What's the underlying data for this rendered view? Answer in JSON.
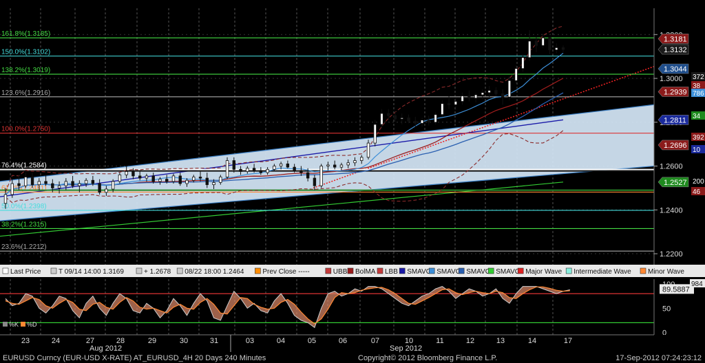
{
  "chart_data": {
    "type": "candlestick",
    "instrument": "EURUSD",
    "interval": "240 Minutes",
    "y_range": [
      1.215,
      1.332
    ],
    "y_ticks": [
      "1.3200",
      "1.3000",
      "1.2800",
      "1.2600",
      "1.2400",
      "1.2200"
    ],
    "x_labels": [
      "23",
      "24",
      "27",
      "28",
      "29",
      "30",
      "31",
      "03",
      "04",
      "05",
      "06",
      "07",
      "10",
      "11",
      "12",
      "13",
      "14",
      "17"
    ],
    "month_labels": [
      "Aug 2012",
      "Sep 2012"
    ],
    "fib_levels": [
      {
        "label": "161.8%(1.3185)",
        "value": 1.3185,
        "color": "#44dd44"
      },
      {
        "label": "150.0%(1.3102)",
        "value": 1.3102,
        "color": "#44dddd"
      },
      {
        "label": "138.2%(1.3019)",
        "value": 1.3019,
        "color": "#44dd44"
      },
      {
        "label": "123.6%(1.2916)",
        "value": 1.2916,
        "color": "#aaaaaa"
      },
      {
        "label": "100.0%(1.2750)",
        "value": 1.275,
        "color": "#dd3333"
      },
      {
        "label": "76.4%(1.2584)",
        "value": 1.2584,
        "color": "#ffffff"
      },
      {
        "label": "61.8%(1.2481)",
        "value": 1.2481,
        "color": "#ff8833"
      },
      {
        "label": "50.0%(1.2398)",
        "value": 1.2398,
        "color": "#44dddd"
      },
      {
        "label": "38.2%(1.2315)",
        "value": 1.2315,
        "color": "#44dd44"
      },
      {
        "label": "23.6%(1.2212)",
        "value": 1.2212,
        "color": "#aaaaaa"
      }
    ],
    "price_tags": [
      {
        "text": "1.3181",
        "value": 1.3181,
        "bg": "#8b1a1a"
      },
      {
        "text": "1.3132",
        "value": 1.3132,
        "bg": "#1a1a1a"
      },
      {
        "text": "1.3044",
        "value": 1.3044,
        "bg": "#1f4e8c"
      },
      {
        "text": "1.2939",
        "value": 1.2939,
        "bg": "#8b1a1a"
      },
      {
        "text": "1.2811",
        "value": 1.2811,
        "bg": "#1a2a9c"
      },
      {
        "text": "1.2696",
        "value": 1.2696,
        "bg": "#8b1a1a"
      },
      {
        "text": "1.2527",
        "value": 1.2527,
        "bg": "#1e8a1e"
      }
    ],
    "candles": [
      {
        "o": 1.243,
        "h": 1.25,
        "l": 1.2405,
        "c": 1.247
      },
      {
        "o": 1.247,
        "h": 1.254,
        "l": 1.2455,
        "c": 1.252
      },
      {
        "o": 1.252,
        "h": 1.256,
        "l": 1.249,
        "c": 1.251
      },
      {
        "o": 1.251,
        "h": 1.257,
        "l": 1.25,
        "c": 1.255
      },
      {
        "o": 1.255,
        "h": 1.257,
        "l": 1.25,
        "c": 1.2515
      },
      {
        "o": 1.2515,
        "h": 1.2545,
        "l": 1.249,
        "c": 1.253
      },
      {
        "o": 1.253,
        "h": 1.256,
        "l": 1.251,
        "c": 1.252
      },
      {
        "o": 1.252,
        "h": 1.254,
        "l": 1.248,
        "c": 1.25
      },
      {
        "o": 1.25,
        "h": 1.253,
        "l": 1.2475,
        "c": 1.251
      },
      {
        "o": 1.251,
        "h": 1.2545,
        "l": 1.249,
        "c": 1.253
      },
      {
        "o": 1.253,
        "h": 1.2555,
        "l": 1.25,
        "c": 1.251
      },
      {
        "o": 1.251,
        "h": 1.2535,
        "l": 1.248,
        "c": 1.252
      },
      {
        "o": 1.252,
        "h": 1.2545,
        "l": 1.2505,
        "c": 1.2535
      },
      {
        "o": 1.2535,
        "h": 1.2555,
        "l": 1.251,
        "c": 1.252
      },
      {
        "o": 1.252,
        "h": 1.254,
        "l": 1.247,
        "c": 1.248
      },
      {
        "o": 1.248,
        "h": 1.251,
        "l": 1.2464,
        "c": 1.2495
      },
      {
        "o": 1.2495,
        "h": 1.254,
        "l": 1.248,
        "c": 1.253
      },
      {
        "o": 1.253,
        "h": 1.257,
        "l": 1.252,
        "c": 1.256
      },
      {
        "o": 1.256,
        "h": 1.26,
        "l": 1.2545,
        "c": 1.2575
      },
      {
        "o": 1.2575,
        "h": 1.259,
        "l": 1.254,
        "c": 1.2555
      },
      {
        "o": 1.2555,
        "h": 1.2575,
        "l": 1.2535,
        "c": 1.2545
      },
      {
        "o": 1.2545,
        "h": 1.2565,
        "l": 1.253,
        "c": 1.2555
      },
      {
        "o": 1.2555,
        "h": 1.257,
        "l": 1.252,
        "c": 1.253
      },
      {
        "o": 1.253,
        "h": 1.255,
        "l": 1.2515,
        "c": 1.254
      },
      {
        "o": 1.254,
        "h": 1.256,
        "l": 1.252,
        "c": 1.253
      },
      {
        "o": 1.253,
        "h": 1.2565,
        "l": 1.252,
        "c": 1.2555
      },
      {
        "o": 1.2555,
        "h": 1.257,
        "l": 1.251,
        "c": 1.252
      },
      {
        "o": 1.252,
        "h": 1.2545,
        "l": 1.2505,
        "c": 1.2535
      },
      {
        "o": 1.2535,
        "h": 1.256,
        "l": 1.2525,
        "c": 1.255
      },
      {
        "o": 1.255,
        "h": 1.2575,
        "l": 1.253,
        "c": 1.2545
      },
      {
        "o": 1.2545,
        "h": 1.257,
        "l": 1.25,
        "c": 1.2515
      },
      {
        "o": 1.2515,
        "h": 1.254,
        "l": 1.2495,
        "c": 1.2525
      },
      {
        "o": 1.2525,
        "h": 1.256,
        "l": 1.2515,
        "c": 1.255
      },
      {
        "o": 1.255,
        "h": 1.264,
        "l": 1.254,
        "c": 1.2625
      },
      {
        "o": 1.2625,
        "h": 1.264,
        "l": 1.257,
        "c": 1.2585
      },
      {
        "o": 1.2585,
        "h": 1.26,
        "l": 1.256,
        "c": 1.2575
      },
      {
        "o": 1.2575,
        "h": 1.26,
        "l": 1.2565,
        "c": 1.259
      },
      {
        "o": 1.259,
        "h": 1.261,
        "l": 1.257,
        "c": 1.258
      },
      {
        "o": 1.258,
        "h": 1.2595,
        "l": 1.256,
        "c": 1.257
      },
      {
        "o": 1.257,
        "h": 1.2595,
        "l": 1.256,
        "c": 1.2585
      },
      {
        "o": 1.2585,
        "h": 1.261,
        "l": 1.2575,
        "c": 1.26
      },
      {
        "o": 1.26,
        "h": 1.262,
        "l": 1.2585,
        "c": 1.261
      },
      {
        "o": 1.261,
        "h": 1.2625,
        "l": 1.259,
        "c": 1.2595
      },
      {
        "o": 1.2595,
        "h": 1.261,
        "l": 1.257,
        "c": 1.258
      },
      {
        "o": 1.258,
        "h": 1.26,
        "l": 1.2555,
        "c": 1.257
      },
      {
        "o": 1.257,
        "h": 1.259,
        "l": 1.253,
        "c": 1.2545
      },
      {
        "o": 1.2545,
        "h": 1.256,
        "l": 1.249,
        "c": 1.251
      },
      {
        "o": 1.251,
        "h": 1.261,
        "l": 1.25,
        "c": 1.26
      },
      {
        "o": 1.26,
        "h": 1.262,
        "l": 1.258,
        "c": 1.2605
      },
      {
        "o": 1.2605,
        "h": 1.2625,
        "l": 1.2585,
        "c": 1.2595
      },
      {
        "o": 1.2595,
        "h": 1.2615,
        "l": 1.258,
        "c": 1.2605
      },
      {
        "o": 1.2605,
        "h": 1.263,
        "l": 1.259,
        "c": 1.2615
      },
      {
        "o": 1.2615,
        "h": 1.264,
        "l": 1.26,
        "c": 1.2625
      },
      {
        "o": 1.2625,
        "h": 1.265,
        "l": 1.261,
        "c": 1.264
      },
      {
        "o": 1.264,
        "h": 1.272,
        "l": 1.263,
        "c": 1.2705
      },
      {
        "o": 1.2705,
        "h": 1.281,
        "l": 1.269,
        "c": 1.279
      },
      {
        "o": 1.279,
        "h": 1.286,
        "l": 1.277,
        "c": 1.284
      },
      {
        "o": 1.284,
        "h": 1.286,
        "l": 1.281,
        "c": 1.283
      },
      {
        "o": 1.283,
        "h": 1.285,
        "l": 1.28,
        "c": 1.2815
      },
      {
        "o": 1.2815,
        "h": 1.284,
        "l": 1.279,
        "c": 1.282
      },
      {
        "o": 1.282,
        "h": 1.2835,
        "l": 1.2795,
        "c": 1.2805
      },
      {
        "o": 1.2805,
        "h": 1.2825,
        "l": 1.278,
        "c": 1.2795
      },
      {
        "o": 1.2795,
        "h": 1.282,
        "l": 1.278,
        "c": 1.281
      },
      {
        "o": 1.281,
        "h": 1.283,
        "l": 1.2785,
        "c": 1.28
      },
      {
        "o": 1.28,
        "h": 1.2845,
        "l": 1.279,
        "c": 1.2835
      },
      {
        "o": 1.2835,
        "h": 1.29,
        "l": 1.2825,
        "c": 1.2885
      },
      {
        "o": 1.2885,
        "h": 1.292,
        "l": 1.286,
        "c": 1.288
      },
      {
        "o": 1.288,
        "h": 1.291,
        "l": 1.2855,
        "c": 1.2895
      },
      {
        "o": 1.2895,
        "h": 1.2935,
        "l": 1.288,
        "c": 1.292
      },
      {
        "o": 1.292,
        "h": 1.2945,
        "l": 1.2895,
        "c": 1.291
      },
      {
        "o": 1.291,
        "h": 1.2935,
        "l": 1.289,
        "c": 1.2925
      },
      {
        "o": 1.2925,
        "h": 1.295,
        "l": 1.2905,
        "c": 1.2935
      },
      {
        "o": 1.2935,
        "h": 1.2965,
        "l": 1.2915,
        "c": 1.2945
      },
      {
        "o": 1.2945,
        "h": 1.296,
        "l": 1.292,
        "c": 1.293
      },
      {
        "o": 1.293,
        "h": 1.295,
        "l": 1.288,
        "c": 1.2915
      },
      {
        "o": 1.2915,
        "h": 1.301,
        "l": 1.29,
        "c": 1.299
      },
      {
        "o": 1.299,
        "h": 1.306,
        "l": 1.2975,
        "c": 1.3045
      },
      {
        "o": 1.3045,
        "h": 1.311,
        "l": 1.303,
        "c": 1.3095
      },
      {
        "o": 1.3095,
        "h": 1.322,
        "l": 1.308,
        "c": 1.317
      },
      {
        "o": 1.317,
        "h": 1.319,
        "l": 1.312,
        "c": 1.315
      },
      {
        "o": 1.315,
        "h": 1.32,
        "l": 1.314,
        "c": 1.3185
      },
      {
        "o": 1.3185,
        "h": 1.319,
        "l": 1.311,
        "c": 1.313
      },
      {
        "o": 1.313,
        "h": 1.316,
        "l": 1.3115,
        "c": 1.314
      },
      {
        "o": 1.314,
        "h": 1.315,
        "l": 1.312,
        "c": 1.3132
      }
    ],
    "legend": [
      {
        "label": "Last Price",
        "color": "#ffffff",
        "icon": "candle-icon"
      },
      {
        "label": "T 09/14 14:00 1.3169",
        "color": "#cccccc",
        "icon": "high-marker-icon"
      },
      {
        "label": "+ 1.2678",
        "color": "#cccccc",
        "icon": "average-marker-icon"
      },
      {
        "label": "08/22 18:00 1.2464",
        "color": "#cccccc",
        "icon": "low-marker-icon"
      },
      {
        "label": "Prev Close -----",
        "color": "#ff8c00",
        "icon": "prev-close-icon"
      },
      {
        "label": "UBB",
        "color": "#c43b3b",
        "icon": "ubb-icon"
      },
      {
        "label": "BolMA",
        "color": "#9b1c1c",
        "icon": "bolma-icon"
      },
      {
        "label": "LBB",
        "color": "#c43b3b",
        "icon": "lbb-icon"
      },
      {
        "label": "SMAVG",
        "color": "#1a1aa8",
        "icon": "smavg-1-icon"
      },
      {
        "label": "SMAVG",
        "color": "#3d8fd8",
        "icon": "smavg-2-icon"
      },
      {
        "label": "SMAVG",
        "color": "#2a5fb0",
        "icon": "smavg-3-icon"
      },
      {
        "label": "SMAVG",
        "color": "#33cc33",
        "icon": "smavg-4-icon"
      },
      {
        "label": "Major Wave",
        "color": "#dd2222",
        "icon": "major-wave-icon"
      },
      {
        "label": "Intermediate Wave",
        "color": "#88eedd",
        "icon": "intermediate-wave-icon"
      },
      {
        "label": "Minor Wave",
        "color": "#ff8833",
        "icon": "minor-wave-icon"
      }
    ],
    "oscillator": {
      "y_range": [
        -5,
        110
      ],
      "y_ticks": [
        "100",
        "50",
        "0"
      ],
      "top_tag": "89.5887",
      "right_edge_tag": "984",
      "legend": [
        {
          "label": "%K",
          "color": "#888888"
        },
        {
          "label": "%D",
          "color": "#ff8833"
        }
      ],
      "k": [
        70,
        55,
        60,
        80,
        75,
        50,
        40,
        55,
        75,
        70,
        45,
        30,
        60,
        75,
        50,
        35,
        60,
        80,
        70,
        45,
        40,
        60,
        50,
        30,
        45,
        70,
        55,
        35,
        60,
        80,
        65,
        30,
        25,
        55,
        85,
        70,
        50,
        60,
        45,
        40,
        65,
        80,
        60,
        35,
        25,
        20,
        10,
        50,
        80,
        85,
        75,
        80,
        90,
        85,
        95,
        95,
        90,
        80,
        70,
        60,
        55,
        65,
        75,
        80,
        90,
        95,
        85,
        70,
        80,
        90,
        85,
        75,
        80,
        90,
        70,
        60,
        80,
        95,
        95,
        95,
        90,
        85,
        80,
        85,
        88
      ],
      "d": [
        65,
        60,
        58,
        65,
        72,
        68,
        55,
        50,
        60,
        68,
        62,
        48,
        45,
        58,
        62,
        52,
        48,
        62,
        72,
        65,
        52,
        48,
        50,
        45,
        40,
        52,
        58,
        50,
        48,
        62,
        70,
        58,
        40,
        38,
        55,
        72,
        70,
        58,
        52,
        48,
        50,
        62,
        68,
        58,
        42,
        28,
        18,
        28,
        48,
        72,
        82,
        80,
        82,
        87,
        90,
        92,
        93,
        88,
        80,
        70,
        60,
        58,
        65,
        72,
        80,
        88,
        90,
        82,
        78,
        82,
        85,
        82,
        80,
        85,
        82,
        72,
        70,
        80,
        88,
        94,
        94,
        91,
        87,
        85,
        86
      ],
      "levels": [
        {
          "value": 80,
          "color": "#dd3333"
        },
        {
          "value": 20,
          "color": "#33cc33"
        }
      ]
    },
    "footer": {
      "left": "EURUSD Curncy (EUR-USD X-RATE) AT_EURUSD_4H 20 Days 240 Minutes",
      "center": "Copyright© 2012 Bloomberg Finance L.P.",
      "right": "17-Sep-2012 07:24:23:12"
    },
    "right_edge_fragments": [
      "372",
      "38",
      "786",
      "34",
      "392",
      "10",
      "200",
      "46"
    ]
  }
}
